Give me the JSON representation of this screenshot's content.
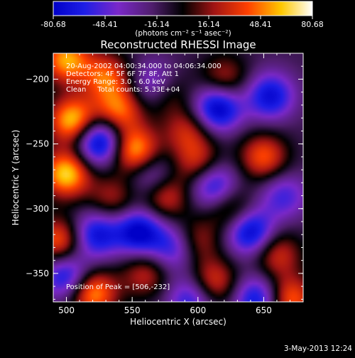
{
  "colorbar": {
    "ticks": [
      "-80.68",
      "-48.41",
      "-16.14",
      "16.14",
      "48.41",
      "80.68"
    ],
    "unit": "(photons cm⁻² s⁻¹ asec⁻²)",
    "range": [
      -80.68,
      80.68
    ]
  },
  "chart_data": {
    "type": "heatmap",
    "title": "Reconstructed RHESSI Image",
    "xlabel": "Heliocentric X (arcsec)",
    "ylabel": "Heliocentric Y (arcsec)",
    "xlim": [
      490,
      680
    ],
    "ylim": [
      -372,
      -180
    ],
    "xticks": [
      500,
      550,
      600,
      650
    ],
    "yticks": [
      -200,
      -250,
      -300,
      -350
    ],
    "xtick_labels": [
      "500",
      "550",
      "600",
      "650"
    ],
    "ytick_labels": [
      "−200",
      "−250",
      "−300",
      "−350"
    ],
    "info_lines": [
      "20-Aug-2002 04:00:34.000 to 04:06:34.000",
      "Detectors: 4F 5F 6F 7F 8F, Att 1",
      "Energy Range: 3.0 - 6.0 keV",
      "Clean     Total counts: 5.33E+04"
    ],
    "peak_label": "Position of Peak = [506,-232]",
    "peak": [
      506,
      -232
    ],
    "blobs": [
      {
        "x": 500,
        "y": -185,
        "v": 70
      },
      {
        "x": 530,
        "y": -198,
        "v": 55
      },
      {
        "x": 505,
        "y": -232,
        "v": 80
      },
      {
        "x": 540,
        "y": -224,
        "v": 60
      },
      {
        "x": 575,
        "y": -210,
        "v": 45
      },
      {
        "x": 592,
        "y": -240,
        "v": 40
      },
      {
        "x": 552,
        "y": -255,
        "v": 75
      },
      {
        "x": 500,
        "y": -273,
        "v": 80
      },
      {
        "x": 535,
        "y": -292,
        "v": 35
      },
      {
        "x": 575,
        "y": -290,
        "v": 50
      },
      {
        "x": 600,
        "y": -265,
        "v": 45
      },
      {
        "x": 620,
        "y": -200,
        "v": 40
      },
      {
        "x": 650,
        "y": -260,
        "v": 55
      },
      {
        "x": 625,
        "y": -300,
        "v": 40
      },
      {
        "x": 660,
        "y": -335,
        "v": 45
      },
      {
        "x": 612,
        "y": -357,
        "v": 50
      },
      {
        "x": 560,
        "y": -350,
        "v": 40
      },
      {
        "x": 520,
        "y": -365,
        "v": 70
      },
      {
        "x": 495,
        "y": -325,
        "v": 60
      },
      {
        "x": 598,
        "y": -325,
        "v": 40
      },
      {
        "x": 670,
        "y": -370,
        "v": 60
      },
      {
        "x": 525,
        "y": -248,
        "v": -80
      },
      {
        "x": 568,
        "y": -205,
        "v": -55
      },
      {
        "x": 615,
        "y": -222,
        "v": -75
      },
      {
        "x": 655,
        "y": -213,
        "v": -60
      },
      {
        "x": 555,
        "y": -318,
        "v": -70
      },
      {
        "x": 522,
        "y": -320,
        "v": -60
      },
      {
        "x": 582,
        "y": -330,
        "v": -50
      },
      {
        "x": 612,
        "y": -282,
        "v": -60
      },
      {
        "x": 640,
        "y": -318,
        "v": -70
      },
      {
        "x": 500,
        "y": -352,
        "v": -60
      },
      {
        "x": 595,
        "y": -370,
        "v": -50
      },
      {
        "x": 645,
        "y": -370,
        "v": -60
      },
      {
        "x": 665,
        "y": -290,
        "v": -40
      },
      {
        "x": 565,
        "y": -275,
        "v": -40
      }
    ]
  },
  "footer": {
    "date": "3-May-2013 12:24"
  }
}
